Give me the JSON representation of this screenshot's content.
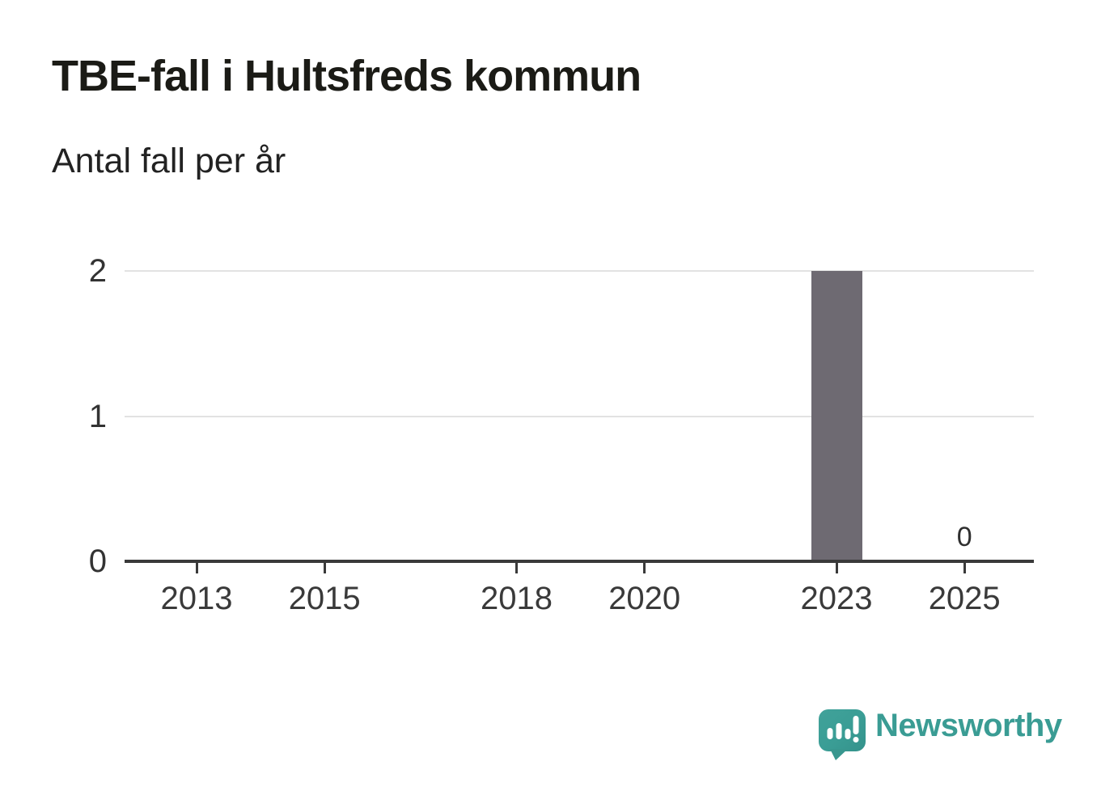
{
  "header": {
    "title": "TBE-fall i Hultsfreds kommun",
    "subtitle": "Antal fall per år"
  },
  "chart_data": {
    "type": "bar",
    "title": "TBE-fall i Hultsfreds kommun",
    "subtitle": "Antal fall per år",
    "categories": [
      2012,
      2013,
      2014,
      2015,
      2016,
      2017,
      2018,
      2019,
      2020,
      2021,
      2022,
      2023,
      2024,
      2025
    ],
    "values": [
      0,
      0,
      0,
      0,
      0,
      0,
      0,
      0,
      0,
      0,
      0,
      2,
      0,
      0
    ],
    "x_tick_labels": [
      "2013",
      "2015",
      "2018",
      "2020",
      "2023",
      "2025"
    ],
    "y_tick_labels": [
      "0",
      "1",
      "2"
    ],
    "y_ticks": [
      0,
      1,
      2
    ],
    "ylim": [
      0,
      2
    ],
    "xlabel": "",
    "ylabel": "Antal fall per år",
    "grid": true,
    "legend": false,
    "value_labels": [
      {
        "category": 2025,
        "label": "0"
      }
    ],
    "colors": {
      "bar": "#6e6a72",
      "gridline": "#e2e2e2",
      "axis": "#3a3a3a",
      "tick_text": "#3a3a3a"
    }
  },
  "footer": {
    "brand": "Newsworthy",
    "accent": "#3a9c94",
    "icon": "newsworthy-speech-bubble-bar-chart-icon"
  }
}
